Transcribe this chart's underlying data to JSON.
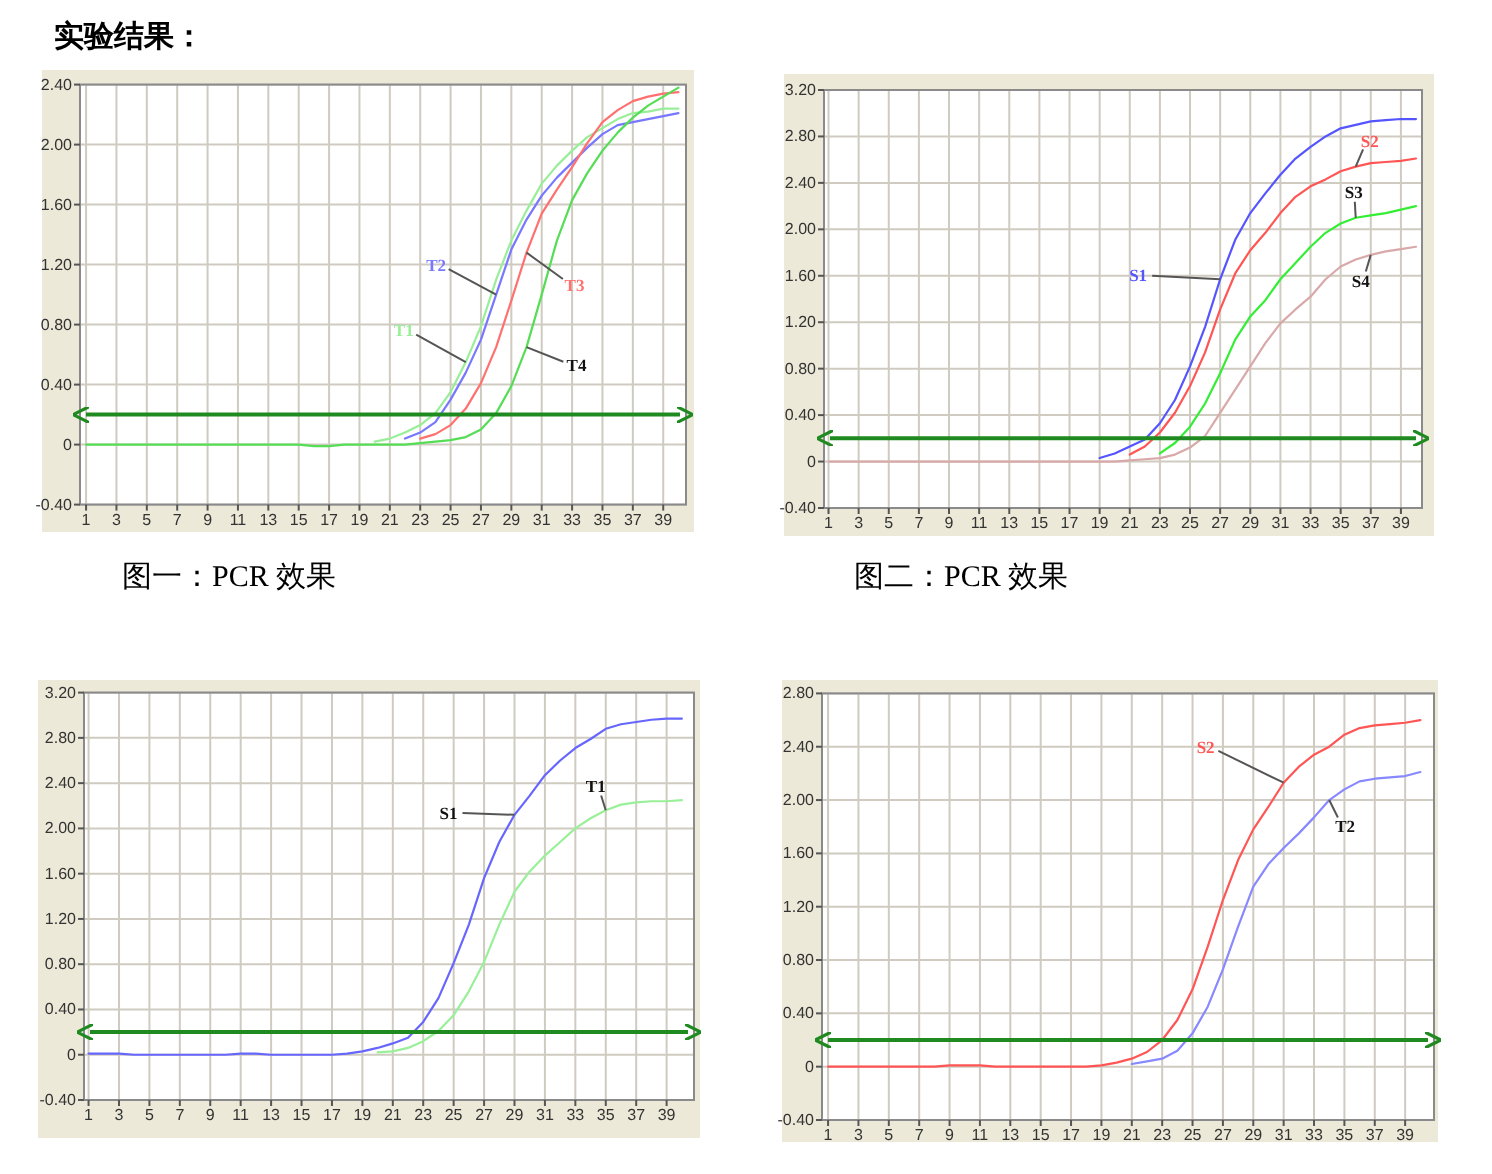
{
  "chart_data": [
    {
      "type": "line",
      "title": "实验结果：",
      "annotations": [
        "图一：PCR 效果"
      ],
      "x": [
        1,
        2,
        3,
        4,
        5,
        6,
        7,
        8,
        9,
        10,
        11,
        12,
        13,
        14,
        15,
        16,
        17,
        18,
        19,
        20,
        21,
        22,
        23,
        24,
        25,
        26,
        27,
        28,
        29,
        30,
        31,
        32,
        33,
        34,
        35,
        36,
        37,
        38,
        39,
        40
      ],
      "xlim": [
        0.6,
        40.5
      ],
      "xticks": [
        1,
        3,
        5,
        7,
        9,
        11,
        13,
        15,
        17,
        19,
        21,
        23,
        25,
        27,
        29,
        31,
        33,
        35,
        37,
        39
      ],
      "ylim": [
        -0.4,
        2.4
      ],
      "yticks": [
        {
          "value": -0.4,
          "label": "-0.40"
        },
        {
          "value": 0,
          "label": "0"
        },
        {
          "value": 0.4,
          "label": "0.40"
        },
        {
          "value": 0.8,
          "label": "0.80"
        },
        {
          "value": 1.2,
          "label": "1.20"
        },
        {
          "value": 1.6,
          "label": "1.60"
        },
        {
          "value": 2,
          "label": "2.00"
        },
        {
          "value": 2.4,
          "label": "2.40"
        }
      ],
      "grid": true,
      "ref_lines": [
        {
          "axis": "y",
          "value": 0.2,
          "color": "#1f8a1f"
        }
      ],
      "series": [
        {
          "name": "T1",
          "color": "#99ee99",
          "values": [
            null,
            null,
            null,
            null,
            null,
            null,
            null,
            null,
            null,
            null,
            null,
            null,
            null,
            null,
            null,
            null,
            null,
            null,
            null,
            0.02,
            0.04,
            0.08,
            0.13,
            0.21,
            0.35,
            0.55,
            0.79,
            1.1,
            1.36,
            1.56,
            1.74,
            1.86,
            1.96,
            2.05,
            2.11,
            2.17,
            2.21,
            2.22,
            2.24,
            2.24
          ]
        },
        {
          "name": "T2",
          "color": "#7777ff",
          "values": [
            null,
            null,
            null,
            null,
            null,
            null,
            null,
            null,
            null,
            null,
            null,
            null,
            null,
            null,
            null,
            null,
            null,
            null,
            null,
            null,
            null,
            0.04,
            0.08,
            0.15,
            0.3,
            0.48,
            0.7,
            1.0,
            1.3,
            1.5,
            1.66,
            1.78,
            1.88,
            1.98,
            2.07,
            2.13,
            2.15,
            2.17,
            2.19,
            2.21
          ]
        },
        {
          "name": "T3",
          "color": "#ff7070",
          "values": [
            null,
            null,
            null,
            null,
            null,
            null,
            null,
            null,
            null,
            null,
            null,
            null,
            null,
            null,
            null,
            null,
            null,
            null,
            null,
            null,
            null,
            null,
            0.04,
            0.07,
            0.13,
            0.24,
            0.41,
            0.65,
            0.96,
            1.28,
            1.54,
            1.7,
            1.85,
            2.01,
            2.15,
            2.23,
            2.29,
            2.32,
            2.34,
            2.35
          ]
        },
        {
          "name": "T4",
          "color": "#55dd55",
          "values": [
            0,
            0,
            0,
            0,
            0,
            0,
            0,
            0,
            0,
            0,
            0,
            0,
            0,
            0,
            0,
            -0.01,
            -0.01,
            0,
            0,
            0,
            0,
            0,
            0.01,
            0.02,
            0.03,
            0.05,
            0.1,
            0.21,
            0.39,
            0.65,
            1.0,
            1.36,
            1.63,
            1.81,
            1.96,
            2.08,
            2.18,
            2.26,
            2.32,
            2.38
          ]
        }
      ]
    },
    {
      "type": "line",
      "annotations": [
        "图二：PCR 效果"
      ],
      "x": [
        1,
        2,
        3,
        4,
        5,
        6,
        7,
        8,
        9,
        10,
        11,
        12,
        13,
        14,
        15,
        16,
        17,
        18,
        19,
        20,
        21,
        22,
        23,
        24,
        25,
        26,
        27,
        28,
        29,
        30,
        31,
        32,
        33,
        34,
        35,
        36,
        37,
        38,
        39,
        40
      ],
      "xlim": [
        0.7,
        40.4
      ],
      "xticks": [
        1,
        3,
        5,
        7,
        9,
        11,
        13,
        15,
        17,
        19,
        21,
        23,
        25,
        27,
        29,
        31,
        33,
        35,
        37,
        39
      ],
      "ylim": [
        -0.4,
        3.2
      ],
      "yticks": [
        {
          "value": -0.4,
          "label": "-0.40"
        },
        {
          "value": 0,
          "label": "0"
        },
        {
          "value": 0.4,
          "label": "0.40"
        },
        {
          "value": 0.8,
          "label": "0.80"
        },
        {
          "value": 1.2,
          "label": "1.20"
        },
        {
          "value": 1.6,
          "label": "1.60"
        },
        {
          "value": 2,
          "label": "2.00"
        },
        {
          "value": 2.4,
          "label": "2.40"
        },
        {
          "value": 2.8,
          "label": "2.80"
        },
        {
          "value": 3.2,
          "label": "3.20"
        }
      ],
      "grid": true,
      "ref_lines": [
        {
          "axis": "y",
          "value": 0.2,
          "color": "#1f8a1f"
        }
      ],
      "series": [
        {
          "name": "S1",
          "color": "#5555ff",
          "values": [
            null,
            null,
            null,
            null,
            null,
            null,
            null,
            null,
            null,
            null,
            null,
            null,
            null,
            null,
            null,
            null,
            null,
            null,
            0.03,
            0.07,
            0.13,
            0.19,
            0.33,
            0.53,
            0.82,
            1.16,
            1.57,
            1.91,
            2.14,
            2.31,
            2.47,
            2.61,
            2.71,
            2.8,
            2.87,
            2.9,
            2.93,
            2.94,
            2.95,
            2.95
          ]
        },
        {
          "name": "S2",
          "color": "#ff5555",
          "values": [
            null,
            null,
            null,
            null,
            null,
            null,
            null,
            null,
            null,
            null,
            null,
            null,
            null,
            null,
            null,
            null,
            null,
            null,
            null,
            null,
            0.06,
            0.13,
            0.25,
            0.42,
            0.65,
            0.94,
            1.31,
            1.62,
            1.82,
            1.97,
            2.14,
            2.28,
            2.37,
            2.43,
            2.5,
            2.54,
            2.57,
            2.58,
            2.59,
            2.61
          ]
        },
        {
          "name": "S3",
          "color": "#33ee33",
          "values": [
            null,
            null,
            null,
            null,
            null,
            null,
            null,
            null,
            null,
            null,
            null,
            null,
            null,
            null,
            null,
            null,
            null,
            null,
            null,
            null,
            null,
            null,
            0.07,
            0.16,
            0.3,
            0.5,
            0.76,
            1.05,
            1.25,
            1.39,
            1.57,
            1.71,
            1.85,
            1.97,
            2.05,
            2.1,
            2.12,
            2.14,
            2.17,
            2.2
          ]
        },
        {
          "name": "S4",
          "color": "#d9a9a9",
          "values": [
            0,
            0,
            0,
            0,
            0,
            0,
            0,
            0,
            0,
            0,
            0,
            0,
            0,
            0,
            0,
            0,
            0,
            0,
            0,
            0,
            0.01,
            0.02,
            0.03,
            0.06,
            0.12,
            0.22,
            0.42,
            0.62,
            0.82,
            1.02,
            1.19,
            1.31,
            1.42,
            1.57,
            1.68,
            1.74,
            1.78,
            1.81,
            1.83,
            1.85
          ]
        }
      ]
    },
    {
      "type": "line",
      "x": [
        1,
        2,
        3,
        4,
        5,
        6,
        7,
        8,
        9,
        10,
        11,
        12,
        13,
        14,
        15,
        16,
        17,
        18,
        19,
        20,
        21,
        22,
        23,
        24,
        25,
        26,
        27,
        28,
        29,
        30,
        31,
        32,
        33,
        34,
        35,
        36,
        37,
        38,
        39,
        40
      ],
      "xlim": [
        0.7,
        40.8
      ],
      "xticks": [
        1,
        3,
        5,
        7,
        9,
        11,
        13,
        15,
        17,
        19,
        21,
        23,
        25,
        27,
        29,
        31,
        33,
        35,
        37,
        39
      ],
      "ylim": [
        -0.4,
        3.2
      ],
      "yticks": [
        {
          "value": -0.4,
          "label": "-0.40"
        },
        {
          "value": 0,
          "label": "0"
        },
        {
          "value": 0.4,
          "label": "0.40"
        },
        {
          "value": 0.8,
          "label": "0.80"
        },
        {
          "value": 1.2,
          "label": "1.20"
        },
        {
          "value": 1.6,
          "label": "1.60"
        },
        {
          "value": 2,
          "label": "2.00"
        },
        {
          "value": 2.4,
          "label": "2.40"
        },
        {
          "value": 2.8,
          "label": "2.80"
        },
        {
          "value": 3.2,
          "label": "3.20"
        }
      ],
      "grid": true,
      "ref_lines": [
        {
          "axis": "y",
          "value": 0.2,
          "color": "#1f8a1f"
        }
      ],
      "series": [
        {
          "name": "T1",
          "color": "#99f099",
          "values": [
            null,
            null,
            null,
            null,
            null,
            null,
            null,
            null,
            null,
            null,
            null,
            null,
            null,
            null,
            null,
            null,
            null,
            null,
            null,
            0.02,
            0.03,
            0.06,
            0.12,
            0.21,
            0.35,
            0.56,
            0.82,
            1.15,
            1.44,
            1.62,
            1.76,
            1.88,
            2.0,
            2.09,
            2.16,
            2.21,
            2.23,
            2.24,
            2.24,
            2.25
          ]
        },
        {
          "name": "S1",
          "color": "#6666ff",
          "values": [
            0.01,
            0.01,
            0.01,
            0,
            0,
            0,
            0,
            0,
            0,
            0,
            0.01,
            0.01,
            0,
            0,
            0,
            0,
            0,
            0.01,
            0.03,
            0.06,
            0.1,
            0.15,
            0.29,
            0.5,
            0.81,
            1.15,
            1.56,
            1.88,
            2.12,
            2.29,
            2.47,
            2.6,
            2.71,
            2.79,
            2.88,
            2.92,
            2.94,
            2.96,
            2.97,
            2.97
          ]
        }
      ]
    },
    {
      "type": "line",
      "x": [
        1,
        2,
        3,
        4,
        5,
        6,
        7,
        8,
        9,
        10,
        11,
        12,
        13,
        14,
        15,
        16,
        17,
        18,
        19,
        20,
        21,
        22,
        23,
        24,
        25,
        26,
        27,
        28,
        29,
        30,
        31,
        32,
        33,
        34,
        35,
        36,
        37,
        38,
        39,
        40
      ],
      "xlim": [
        0.6,
        40.9
      ],
      "xticks": [
        1,
        3,
        5,
        7,
        9,
        11,
        13,
        15,
        17,
        19,
        21,
        23,
        25,
        27,
        29,
        31,
        33,
        35,
        37,
        39
      ],
      "ylim": [
        -0.4,
        2.8
      ],
      "yticks": [
        {
          "value": -0.4,
          "label": "-0.40"
        },
        {
          "value": 0,
          "label": "0"
        },
        {
          "value": 0.4,
          "label": "0.40"
        },
        {
          "value": 0.8,
          "label": "0.80"
        },
        {
          "value": 1.2,
          "label": "1.20"
        },
        {
          "value": 1.6,
          "label": "1.60"
        },
        {
          "value": 2,
          "label": "2.00"
        },
        {
          "value": 2.4,
          "label": "2.40"
        },
        {
          "value": 2.8,
          "label": "2.80"
        }
      ],
      "grid": true,
      "ref_lines": [
        {
          "axis": "y",
          "value": 0.2,
          "color": "#1f8a1f"
        }
      ],
      "series": [
        {
          "name": "T2",
          "color": "#8888ff",
          "values": [
            null,
            null,
            null,
            null,
            null,
            null,
            null,
            null,
            null,
            null,
            null,
            null,
            null,
            null,
            null,
            null,
            null,
            null,
            null,
            null,
            0.02,
            0.04,
            0.06,
            0.12,
            0.25,
            0.45,
            0.73,
            1.05,
            1.35,
            1.52,
            1.64,
            1.75,
            1.87,
            2.0,
            2.08,
            2.14,
            2.16,
            2.17,
            2.18,
            2.21
          ]
        },
        {
          "name": "S2",
          "color": "#ff5555",
          "values": [
            0,
            0,
            0,
            0,
            0,
            0,
            0,
            0,
            0.01,
            0.01,
            0.01,
            0,
            0,
            0,
            0,
            0,
            0,
            0,
            0.01,
            0.03,
            0.06,
            0.11,
            0.2,
            0.35,
            0.58,
            0.9,
            1.25,
            1.55,
            1.78,
            1.95,
            2.13,
            2.25,
            2.34,
            2.4,
            2.49,
            2.54,
            2.56,
            2.57,
            2.58,
            2.6
          ]
        }
      ]
    }
  ]
}
